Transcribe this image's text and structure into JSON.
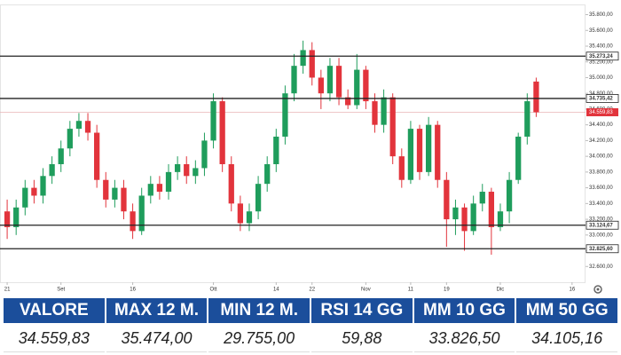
{
  "chart_data": {
    "type": "candlestick",
    "open": [
      33300,
      33100,
      33350,
      33600,
      33500,
      33750,
      33900,
      34100,
      34350,
      34450,
      34300,
      33700,
      33450,
      33600,
      33300,
      33050,
      33500,
      33650,
      33550,
      33800,
      33900,
      33750,
      33850,
      34200,
      34700,
      33900,
      33400,
      33150,
      33300,
      33650,
      33900,
      34250,
      34800,
      35150,
      35350,
      35000,
      34800,
      35150,
      34750,
      34650,
      35100,
      34700,
      34400,
      34750,
      34000,
      33700,
      34350,
      33800,
      34400,
      33700,
      33200,
      33350,
      33050,
      33400,
      33550,
      33100,
      33300,
      33700,
      34250,
      34950
    ],
    "high": [
      33450,
      33450,
      33700,
      33700,
      33850,
      34000,
      34200,
      34450,
      34550,
      34550,
      34400,
      33800,
      33700,
      33700,
      33400,
      33600,
      33750,
      33750,
      33900,
      34000,
      34000,
      33950,
      34300,
      34800,
      34750,
      34000,
      33500,
      33400,
      33750,
      34000,
      34350,
      34900,
      35300,
      35470,
      35450,
      35100,
      35250,
      35250,
      34850,
      35300,
      35150,
      34800,
      34850,
      34800,
      34100,
      34450,
      34400,
      34500,
      34450,
      33800,
      33450,
      33400,
      33500,
      33650,
      33600,
      33400,
      33800,
      34300,
      34800,
      35000
    ],
    "low": [
      32950,
      33000,
      33250,
      33400,
      33400,
      33650,
      33800,
      34000,
      34250,
      34200,
      33600,
      33350,
      33350,
      33200,
      32950,
      33000,
      33400,
      33450,
      33450,
      33700,
      33650,
      33650,
      33750,
      34100,
      33800,
      33300,
      33050,
      33050,
      33200,
      33550,
      33800,
      34150,
      34700,
      35050,
      34900,
      34600,
      34700,
      34650,
      34600,
      34600,
      34600,
      34300,
      34300,
      33900,
      33600,
      33650,
      33700,
      33750,
      33600,
      32850,
      33000,
      32800,
      33000,
      33300,
      32750,
      33050,
      33150,
      33650,
      34150,
      34500
    ],
    "close": [
      33100,
      33350,
      33600,
      33500,
      33750,
      33900,
      34100,
      34350,
      34450,
      34300,
      33700,
      33450,
      33600,
      33300,
      33050,
      33500,
      33650,
      33550,
      33800,
      33900,
      33750,
      33850,
      34200,
      34700,
      33900,
      33400,
      33150,
      33300,
      33650,
      33900,
      34250,
      34800,
      35150,
      35350,
      35000,
      34800,
      35150,
      34750,
      34650,
      35100,
      34700,
      34400,
      34750,
      34000,
      33700,
      34350,
      33800,
      34400,
      33700,
      33200,
      33350,
      33050,
      33400,
      33550,
      33100,
      33300,
      33700,
      34250,
      34700,
      34560
    ],
    "up_color": "#1f9d5c",
    "down_color": "#e2343c",
    "xlim": [
      -0.8,
      64.5
    ],
    "xticks": [
      {
        "value": 0,
        "label": "21"
      },
      {
        "value": 6,
        "label": "Set"
      },
      {
        "value": 14,
        "label": "16"
      },
      {
        "value": 23,
        "label": "Ott"
      },
      {
        "value": 30,
        "label": "14"
      },
      {
        "value": 34,
        "label": "22"
      },
      {
        "value": 40,
        "label": "Nov"
      },
      {
        "value": 45,
        "label": "11"
      },
      {
        "value": 49,
        "label": "19"
      },
      {
        "value": 55,
        "label": "Dic"
      },
      {
        "value": 63,
        "label": "16"
      }
    ],
    "ylim": [
      32400,
      35930
    ],
    "yticks": [
      {
        "value": 32600,
        "label": "32.600,00"
      },
      {
        "value": 32800,
        "label": "32.800,00"
      },
      {
        "value": 33000,
        "label": "33.000,00"
      },
      {
        "value": 33200,
        "label": "33.200,00"
      },
      {
        "value": 33400,
        "label": "33.400,00"
      },
      {
        "value": 33600,
        "label": "33.600,00"
      },
      {
        "value": 33800,
        "label": "33.800,00"
      },
      {
        "value": 34000,
        "label": "34.000,00"
      },
      {
        "value": 34200,
        "label": "34.200,00"
      },
      {
        "value": 34400,
        "label": "34.400,00"
      },
      {
        "value": 34600,
        "label": "34.600,00"
      },
      {
        "value": 34800,
        "label": "34.800,00"
      },
      {
        "value": 35000,
        "label": "35.000,00"
      },
      {
        "value": 35200,
        "label": "35.200,00"
      },
      {
        "value": 35400,
        "label": "35.400,00"
      },
      {
        "value": 35600,
        "label": "35.600,00"
      },
      {
        "value": 35800,
        "label": "35.800,00"
      }
    ],
    "levels": [
      {
        "value": 35273.24,
        "label": "35.273,24"
      },
      {
        "value": 34735.42,
        "label": "34.735,42"
      },
      {
        "value": 33124.67,
        "label": "33.124,67"
      },
      {
        "value": 32825.6,
        "label": "32.825,60"
      }
    ],
    "last_price": {
      "value": 34559.83,
      "label": "34.559,83"
    }
  },
  "table": {
    "headers": [
      "VALORE",
      "MAX 12 M.",
      "MIN 12 M.",
      "RSI 14 GG",
      "MM 10 GG",
      "MM 50 GG"
    ],
    "values": [
      "34.559,83",
      "35.474,00",
      "29.755,00",
      "59,88",
      "33.826,50",
      "34.105,16"
    ]
  }
}
